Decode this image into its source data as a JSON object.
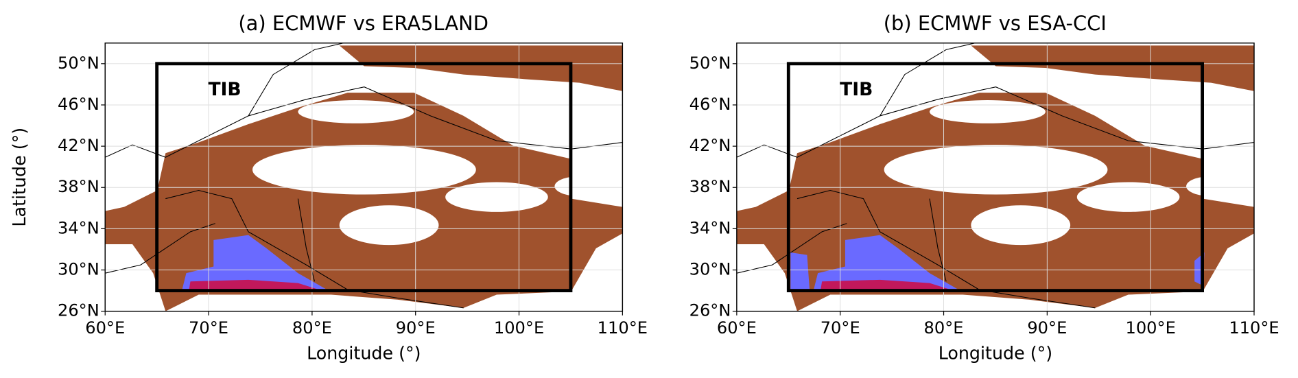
{
  "chart_data": [
    {
      "type": "map",
      "title": "(a) ECMWF vs ERA5LAND",
      "xlabel": "Longitude ($^\\circ$)",
      "ylabel": "Latitude ($^\\circ$)",
      "xlim": [
        60,
        110
      ],
      "ylim": [
        26,
        52
      ],
      "xticks": [
        {
          "value": 60,
          "label": "60°E"
        },
        {
          "value": 70,
          "label": "70°E"
        },
        {
          "value": 80,
          "label": "80°E"
        },
        {
          "value": 90,
          "label": "90°E"
        },
        {
          "value": 100,
          "label": "100°E"
        },
        {
          "value": 110,
          "label": "110°E"
        }
      ],
      "yticks": [
        {
          "value": 26,
          "label": "26°N"
        },
        {
          "value": 30,
          "label": "30°N"
        },
        {
          "value": 34,
          "label": "34°N"
        },
        {
          "value": 38,
          "label": "38°N"
        },
        {
          "value": 42,
          "label": "42°N"
        },
        {
          "value": 46,
          "label": "46°N"
        },
        {
          "value": 50,
          "label": "50°N"
        }
      ],
      "grid": true,
      "region": {
        "label": "TIB",
        "lon": [
          65,
          105
        ],
        "lat": [
          28,
          50
        ]
      }
    },
    {
      "type": "map",
      "title": "(b) ECMWF vs ESA-CCI",
      "xlabel": "Longitude ($^\\circ$)",
      "xlim": [
        60,
        110
      ],
      "ylim": [
        26,
        52
      ],
      "xticks": [
        {
          "value": 60,
          "label": "60°E"
        },
        {
          "value": 70,
          "label": "70°E"
        },
        {
          "value": 80,
          "label": "80°E"
        },
        {
          "value": 90,
          "label": "90°E"
        },
        {
          "value": 100,
          "label": "100°E"
        },
        {
          "value": 110,
          "label": "110°E"
        }
      ],
      "yticks": [
        {
          "value": 26,
          "label": "26°N"
        },
        {
          "value": 30,
          "label": "30°N"
        },
        {
          "value": 34,
          "label": "34°N"
        },
        {
          "value": 38,
          "label": "38°N"
        },
        {
          "value": 42,
          "label": "42°N"
        },
        {
          "value": 46,
          "label": "46°N"
        },
        {
          "value": 50,
          "label": "50°N"
        }
      ],
      "grid": true,
      "region": {
        "label": "TIB",
        "lon": [
          65,
          105
        ],
        "lat": [
          28,
          50
        ]
      }
    }
  ]
}
